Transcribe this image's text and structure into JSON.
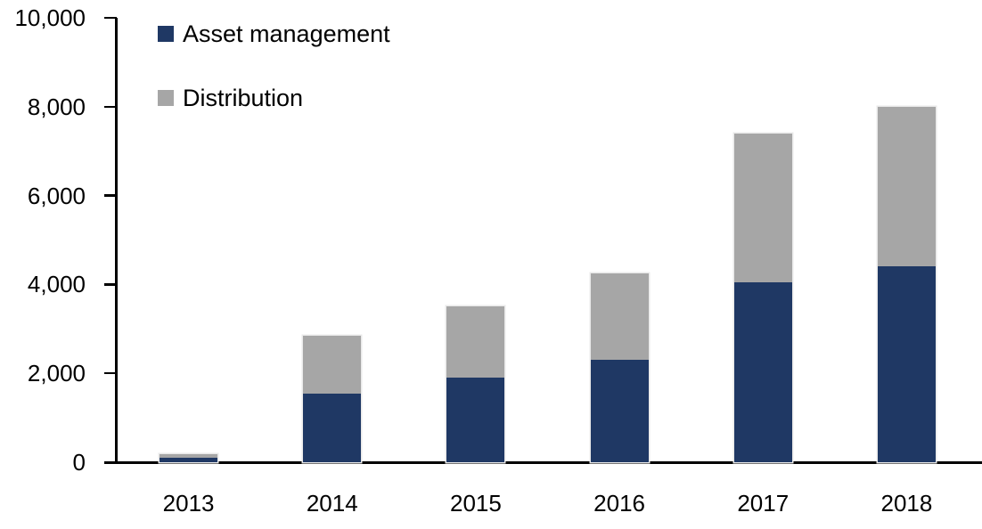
{
  "chart_data": {
    "type": "bar",
    "stacked": true,
    "title": "",
    "xlabel": "",
    "ylabel": "",
    "categories": [
      "2013",
      "2014",
      "2015",
      "2016",
      "2017",
      "2018"
    ],
    "series": [
      {
        "name": "Asset management",
        "color": "#1F3864",
        "values": [
          100,
          1550,
          1900,
          2300,
          4050,
          4400
        ]
      },
      {
        "name": "Distribution",
        "color": "#A6A6A6",
        "values": [
          90,
          1300,
          1600,
          1950,
          3350,
          3600
        ]
      }
    ],
    "ylim": [
      0,
      10000
    ],
    "yticks": [
      0,
      2000,
      4000,
      6000,
      8000,
      10000
    ],
    "ytick_labels": [
      "0",
      "2,000",
      "4,000",
      "6,000",
      "8,000",
      "10,000"
    ],
    "grid": false,
    "legend_position": "top-left",
    "axis_color": "#000000",
    "text_color": "#000000",
    "background": "#FFFFFF"
  }
}
